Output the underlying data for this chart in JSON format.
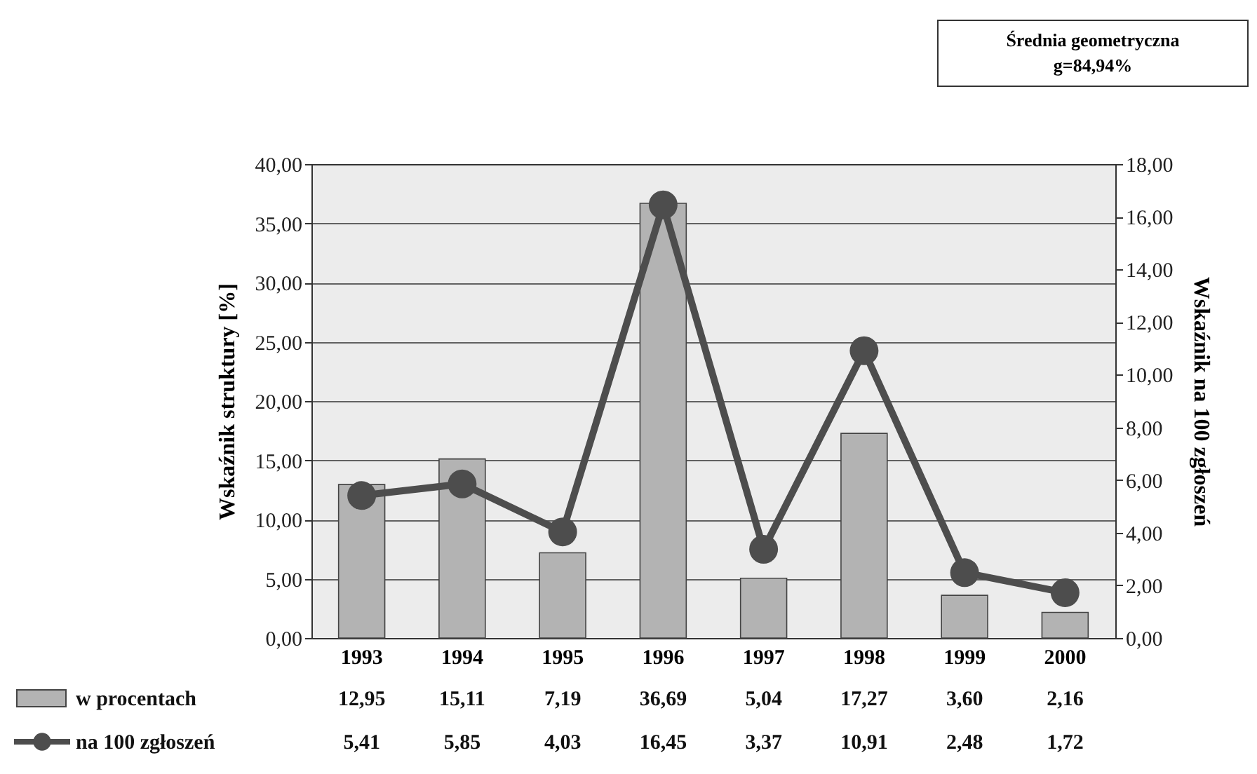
{
  "chart_data": {
    "type": "bar",
    "annotations": [
      "Średnia geometryczna",
      "g=84,94%"
    ],
    "ylabel": "Wskaźnik struktury [%]",
    "y2label": "Wskaźnik na 100 zgłoszeń",
    "categories": [
      "1993",
      "1994",
      "1995",
      "1996",
      "1997",
      "1998",
      "1999",
      "2000"
    ],
    "series": [
      {
        "name": "w procentach",
        "color": "#b3b3b3",
        "values": [
          12.95,
          15.11,
          7.19,
          36.69,
          5.04,
          17.27,
          3.6,
          2.16
        ],
        "value_labels": [
          "12,95",
          "15,11",
          "7,19",
          "36,69",
          "5,04",
          "17,27",
          "3,60",
          "2,16"
        ]
      },
      {
        "name": "na 100 zgłoszeń",
        "type": "line",
        "axis": "y2",
        "color": "#4d4d4d",
        "marker": "circle",
        "values": [
          5.41,
          5.85,
          4.03,
          16.45,
          3.37,
          10.91,
          2.48,
          1.72
        ],
        "value_labels": [
          "5,41",
          "5,85",
          "4,03",
          "16,45",
          "3,37",
          "10,91",
          "2,48",
          "1,72"
        ]
      }
    ],
    "ylim": [
      0,
      40
    ],
    "yticks": [
      {
        "value": 0,
        "label": "0,00"
      },
      {
        "value": 5,
        "label": "5,00"
      },
      {
        "value": 10,
        "label": "10,00"
      },
      {
        "value": 15,
        "label": "15,00"
      },
      {
        "value": 20,
        "label": "20,00"
      },
      {
        "value": 25,
        "label": "25,00"
      },
      {
        "value": 30,
        "label": "30,00"
      },
      {
        "value": 35,
        "label": "35,00"
      },
      {
        "value": 40,
        "label": "40,00"
      }
    ],
    "y2lim": [
      0,
      18
    ],
    "y2ticks": [
      {
        "value": 0,
        "label": "0,00"
      },
      {
        "value": 2,
        "label": "2,00"
      },
      {
        "value": 4,
        "label": "4,00"
      },
      {
        "value": 6,
        "label": "6,00"
      },
      {
        "value": 8,
        "label": "8,00"
      },
      {
        "value": 10,
        "label": "10,00"
      },
      {
        "value": 12,
        "label": "12,00"
      },
      {
        "value": 14,
        "label": "14,00"
      },
      {
        "value": 16,
        "label": "16,00"
      },
      {
        "value": 18,
        "label": "18,00"
      }
    ],
    "grid": "y",
    "legend": "bottom left",
    "line_style": "solid"
  }
}
